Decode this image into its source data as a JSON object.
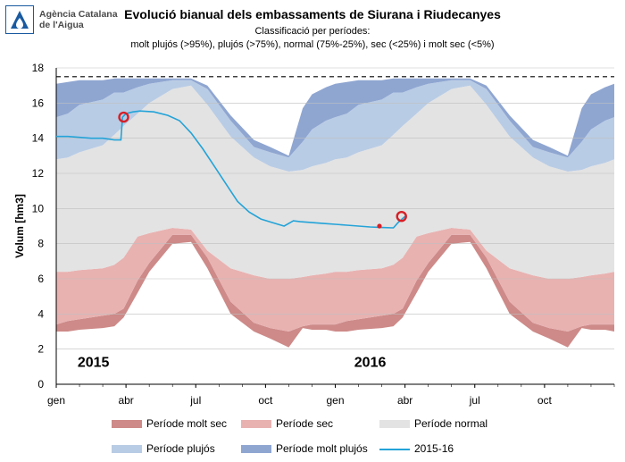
{
  "logo": {
    "line1": "Agència Catalana",
    "line2": "de l'Aigua",
    "icon": "water-drop-icon",
    "color": "#1a5aa0"
  },
  "header": {
    "title": "Evolució bianual dels embassaments de Siurana i Riudecanyes",
    "subtitle_line1": "Classificació per períodes:",
    "subtitle_line2": "molt plujós (>95%), plujós (>75%), normal (75%-25%), sec (<25%) i molt sec (<5%)"
  },
  "chart_data": {
    "type": "area",
    "ylabel": "Volum [hm3]",
    "ylim": [
      0,
      18
    ],
    "yticks": [
      0,
      2,
      4,
      6,
      8,
      10,
      12,
      14,
      16,
      18
    ],
    "x_unit": "month",
    "xlim": [
      0,
      24
    ],
    "xticks": [
      {
        "month": 0,
        "label": "gen"
      },
      {
        "month": 3,
        "label": "abr"
      },
      {
        "month": 6,
        "label": "jul"
      },
      {
        "month": 9,
        "label": "oct"
      },
      {
        "month": 12,
        "label": "gen"
      },
      {
        "month": 15,
        "label": "abr"
      },
      {
        "month": 18,
        "label": "jul"
      },
      {
        "month": 21,
        "label": "oct"
      }
    ],
    "year_labels": [
      {
        "month": 1.6,
        "label": "2015"
      },
      {
        "month": 13.5,
        "label": "2016"
      }
    ],
    "capacity_line": 17.5,
    "band_months": [
      0,
      0.5,
      1,
      2,
      2.5,
      2.9,
      3.5,
      4,
      5,
      5.8,
      6.5,
      7.5,
      8.5,
      9.2,
      10,
      10.6,
      11,
      11.6,
      12
    ],
    "bands": [
      {
        "name": "Període molt sec",
        "color": "#cd8a88",
        "lower": [
          3.0,
          3.0,
          3.1,
          3.2,
          3.3,
          3.8,
          5.2,
          6.4,
          8.0,
          8.1,
          6.6,
          4.0,
          3.0,
          2.6,
          2.1,
          3.2,
          3.1,
          3.1,
          3.0
        ],
        "upper": [
          3.4,
          3.6,
          3.7,
          3.9,
          4.0,
          4.3,
          5.9,
          6.9,
          8.5,
          8.5,
          7.2,
          4.7,
          3.5,
          3.2,
          3.0,
          3.3,
          3.4,
          3.4,
          3.4
        ]
      },
      {
        "name": "Període sec",
        "color": "#e8b2b1",
        "lower": [
          3.4,
          3.6,
          3.7,
          3.9,
          4.0,
          4.3,
          5.9,
          6.9,
          8.5,
          8.5,
          7.2,
          4.7,
          3.5,
          3.2,
          3.0,
          3.3,
          3.4,
          3.4,
          3.4
        ],
        "upper": [
          6.4,
          6.4,
          6.5,
          6.6,
          6.8,
          7.2,
          8.4,
          8.6,
          8.9,
          8.8,
          7.6,
          6.6,
          6.2,
          6.0,
          6.0,
          6.1,
          6.2,
          6.3,
          6.4
        ]
      },
      {
        "name": "Període normal",
        "color": "#e3e3e3",
        "lower": [
          6.4,
          6.4,
          6.5,
          6.6,
          6.8,
          7.2,
          8.4,
          8.6,
          8.9,
          8.8,
          7.6,
          6.6,
          6.2,
          6.0,
          6.0,
          6.1,
          6.2,
          6.3,
          6.4
        ],
        "upper": [
          12.8,
          12.9,
          13.2,
          13.6,
          14.2,
          14.7,
          15.4,
          16.0,
          16.8,
          17.0,
          15.9,
          14.1,
          12.9,
          12.4,
          12.1,
          12.2,
          12.4,
          12.6,
          12.8
        ]
      },
      {
        "name": "Període plujós",
        "color": "#b9cce5",
        "lower": [
          12.8,
          12.9,
          13.2,
          13.6,
          14.2,
          14.7,
          15.4,
          16.0,
          16.8,
          17.0,
          15.9,
          14.1,
          12.9,
          12.4,
          12.1,
          12.2,
          12.4,
          12.6,
          12.8
        ],
        "upper": [
          15.2,
          15.4,
          15.9,
          16.2,
          16.6,
          16.6,
          16.9,
          17.1,
          17.3,
          17.3,
          16.8,
          15.0,
          13.5,
          13.2,
          12.9,
          13.8,
          14.5,
          15.0,
          15.2
        ]
      },
      {
        "name": "Període molt plujós",
        "color": "#8fa6d1",
        "lower": [
          15.2,
          15.4,
          15.9,
          16.2,
          16.6,
          16.6,
          16.9,
          17.1,
          17.3,
          17.3,
          16.8,
          15.0,
          13.5,
          13.2,
          12.9,
          13.8,
          14.5,
          15.0,
          15.2
        ],
        "upper": [
          17.1,
          17.2,
          17.3,
          17.3,
          17.4,
          17.4,
          17.4,
          17.4,
          17.4,
          17.4,
          17.0,
          15.3,
          13.9,
          13.5,
          13.0,
          15.7,
          16.5,
          16.9,
          17.1
        ]
      }
    ],
    "series": [
      {
        "name": "2015-16",
        "color": "#23a3d8",
        "x": [
          0,
          0.5,
          1,
          1.5,
          2,
          2.5,
          2.78,
          2.85,
          3.0,
          3.3,
          3.6,
          4.2,
          4.8,
          5.3,
          5.8,
          6.3,
          6.8,
          7.3,
          7.8,
          8.3,
          8.8,
          9.3,
          9.8,
          10.2,
          10.5,
          11,
          11.5,
          12,
          12.5,
          13,
          13.5,
          14.0,
          14.5,
          14.7,
          15.0
        ],
        "values": [
          14.1,
          14.1,
          14.05,
          14.0,
          14.0,
          13.9,
          13.9,
          15.2,
          15.4,
          15.5,
          15.55,
          15.5,
          15.3,
          15.0,
          14.3,
          13.4,
          12.4,
          11.4,
          10.4,
          9.8,
          9.4,
          9.2,
          9.0,
          9.3,
          9.25,
          9.2,
          9.15,
          9.1,
          9.05,
          9.0,
          8.95,
          8.92,
          8.9,
          9.2,
          9.55
        ]
      }
    ],
    "markers": [
      {
        "month": 2.9,
        "value": 15.2
      },
      {
        "month": 14.85,
        "value": 9.55
      }
    ],
    "point_marker": {
      "month": 13.9,
      "value": 9.0
    },
    "legend_labels": [
      "Període molt sec",
      "Període sec",
      "Període normal",
      "Període plujós",
      "Període molt plujós",
      "2015-16"
    ]
  }
}
